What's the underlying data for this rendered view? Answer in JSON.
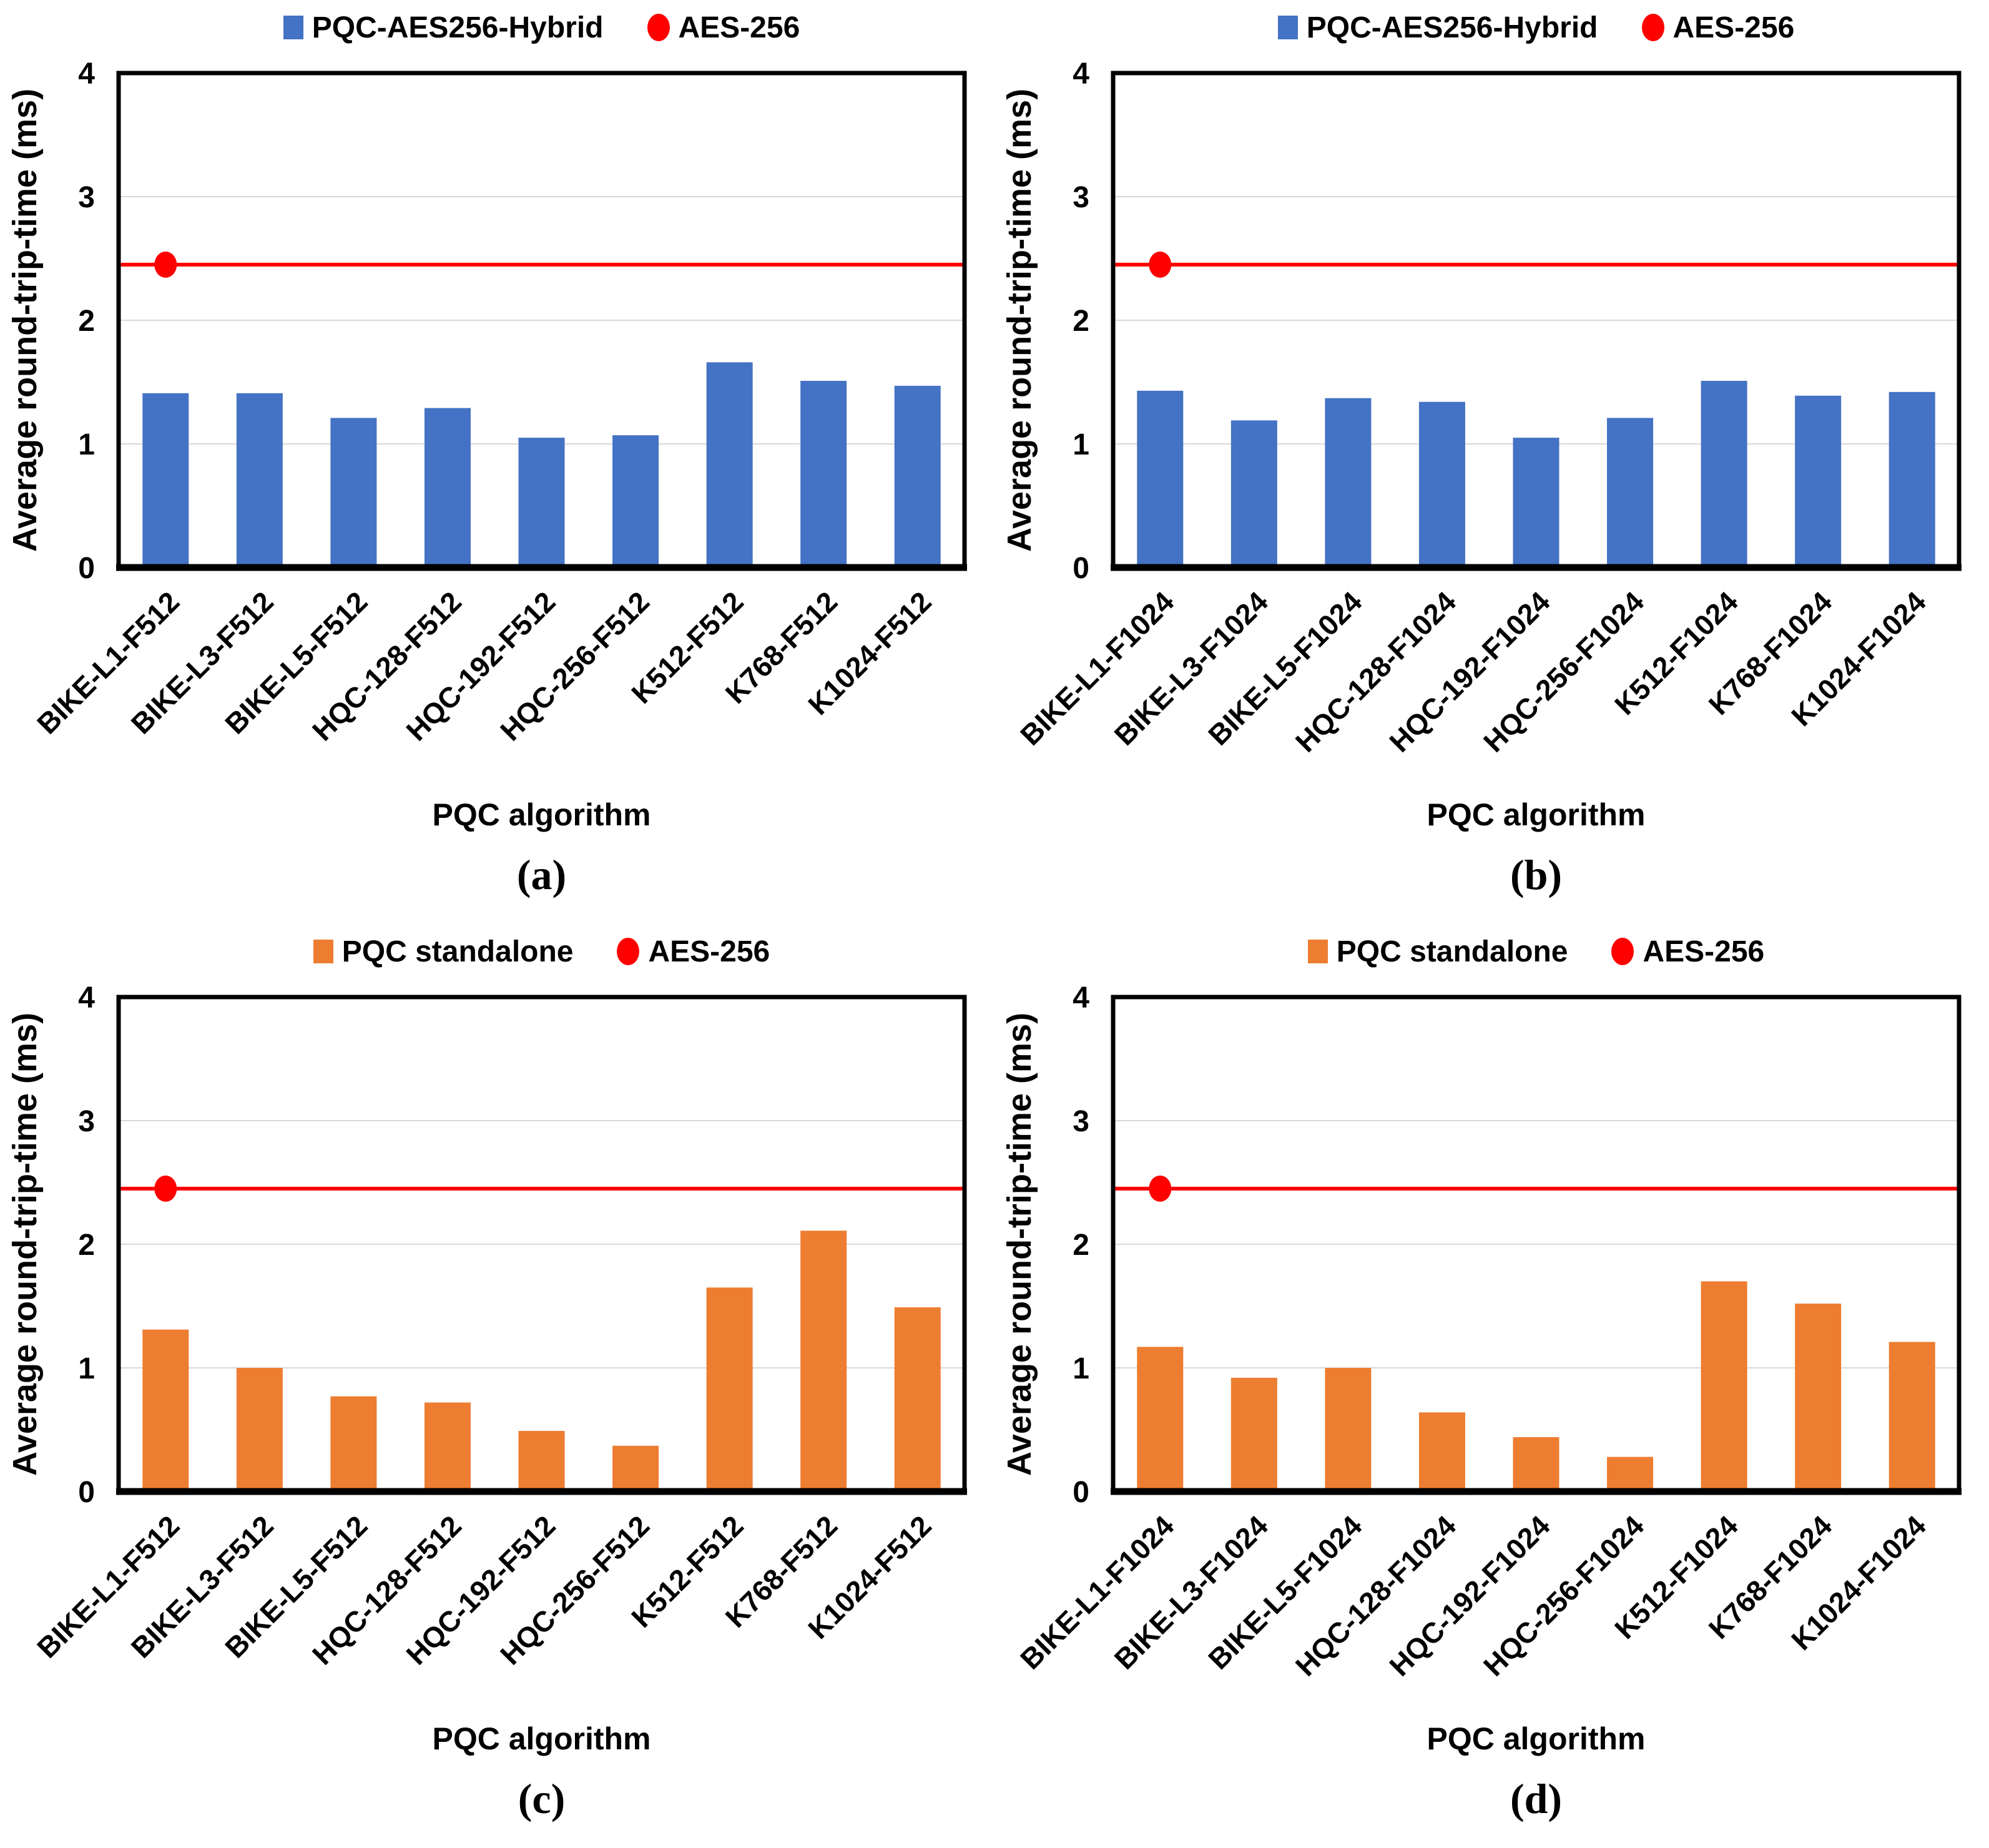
{
  "colors": {
    "hybrid_blue": "#4472C4",
    "standalone_orange": "#ED7D31",
    "aes_red": "#FF0000",
    "gridline": "#D9D9D9",
    "axis": "#000000"
  },
  "chart_data": [
    {
      "type": "bar",
      "panel": "a",
      "caption": "(a)",
      "legend": {
        "position": "top",
        "items": [
          {
            "label": "PQC-AES256-Hybrid",
            "shape": "square",
            "color": "#4472C4"
          },
          {
            "label": "AES-256",
            "shape": "circle",
            "color": "#FF0000"
          }
        ]
      },
      "categories": [
        "BIKE-L1-F512",
        "BIKE-L3-F512",
        "BIKE-L5-F512",
        "HQC-128-F512",
        "HQC-192-F512",
        "HQC-256-F512",
        "K512-F512",
        "K768-F512",
        "K1024-F512"
      ],
      "series": [
        {
          "name": "PQC-AES256-Hybrid",
          "color": "#4472C4",
          "values": [
            1.41,
            1.41,
            1.21,
            1.29,
            1.05,
            1.07,
            1.66,
            1.51,
            1.47
          ]
        }
      ],
      "reference_line": {
        "name": "AES-256",
        "value": 2.45,
        "color": "#FF0000",
        "marker": "circle-on-first-category"
      },
      "xlabel": "PQC algorithm",
      "ylabel": "Average round-trip-time (ms)",
      "ylim": [
        0,
        4
      ],
      "yticks": [
        0,
        1,
        2,
        3,
        4
      ],
      "grid": "horizontal"
    },
    {
      "type": "bar",
      "panel": "b",
      "caption": "(b)",
      "legend": {
        "position": "top",
        "items": [
          {
            "label": "PQC-AES256-Hybrid",
            "shape": "square",
            "color": "#4472C4"
          },
          {
            "label": "AES-256",
            "shape": "circle",
            "color": "#FF0000"
          }
        ]
      },
      "categories": [
        "BIKE-L1-F1024",
        "BIKE-L3-F1024",
        "BIKE-L5-F1024",
        "HQC-128-F1024",
        "HQC-192-F1024",
        "HQC-256-F1024",
        "K512-F1024",
        "K768-F1024",
        "K1024-F1024"
      ],
      "series": [
        {
          "name": "PQC-AES256-Hybrid",
          "color": "#4472C4",
          "values": [
            1.43,
            1.19,
            1.37,
            1.34,
            1.05,
            1.21,
            1.51,
            1.39,
            1.42
          ]
        }
      ],
      "reference_line": {
        "name": "AES-256",
        "value": 2.45,
        "color": "#FF0000",
        "marker": "circle-on-first-category"
      },
      "xlabel": "PQC algorithm",
      "ylabel": "Average round-trip-time (ms)",
      "ylim": [
        0,
        4
      ],
      "yticks": [
        0,
        1,
        2,
        3,
        4
      ],
      "grid": "horizontal"
    },
    {
      "type": "bar",
      "panel": "c",
      "caption": "(c)",
      "legend": {
        "position": "top",
        "items": [
          {
            "label": "PQC standalone",
            "shape": "square",
            "color": "#ED7D31"
          },
          {
            "label": "AES-256",
            "shape": "circle",
            "color": "#FF0000"
          }
        ]
      },
      "categories": [
        "BIKE-L1-F512",
        "BIKE-L3-F512",
        "BIKE-L5-F512",
        "HQC-128-F512",
        "HQC-192-F512",
        "HQC-256-F512",
        "K512-F512",
        "K768-F512",
        "K1024-F512"
      ],
      "series": [
        {
          "name": "PQC standalone",
          "color": "#ED7D31",
          "values": [
            1.31,
            1.0,
            0.77,
            0.72,
            0.49,
            0.37,
            1.65,
            2.11,
            1.49
          ]
        }
      ],
      "reference_line": {
        "name": "AES-256",
        "value": 2.45,
        "color": "#FF0000",
        "marker": "circle-on-first-category"
      },
      "xlabel": "PQC algorithm",
      "ylabel": "Average round-trip-time (ms)",
      "ylim": [
        0,
        4
      ],
      "yticks": [
        0,
        1,
        2,
        3,
        4
      ],
      "grid": "horizontal"
    },
    {
      "type": "bar",
      "panel": "d",
      "caption": "(d)",
      "legend": {
        "position": "top",
        "items": [
          {
            "label": "PQC standalone",
            "shape": "square",
            "color": "#ED7D31"
          },
          {
            "label": "AES-256",
            "shape": "circle",
            "color": "#FF0000"
          }
        ]
      },
      "categories": [
        "BIKE-L1-F1024",
        "BIKE-L3-F1024",
        "BIKE-L5-F1024",
        "HQC-128-F1024",
        "HQC-192-F1024",
        "HQC-256-F1024",
        "K512-F1024",
        "K768-F1024",
        "K1024-F1024"
      ],
      "series": [
        {
          "name": "PQC standalone",
          "color": "#ED7D31",
          "values": [
            1.17,
            0.92,
            1.0,
            0.64,
            0.44,
            0.28,
            1.7,
            1.52,
            1.21
          ]
        }
      ],
      "reference_line": {
        "name": "AES-256",
        "value": 2.45,
        "color": "#FF0000",
        "marker": "circle-on-first-category"
      },
      "xlabel": "PQC algorithm",
      "ylabel": "Average round-trip-time (ms)",
      "ylim": [
        0,
        4
      ],
      "yticks": [
        0,
        1,
        2,
        3,
        4
      ],
      "grid": "horizontal"
    }
  ]
}
